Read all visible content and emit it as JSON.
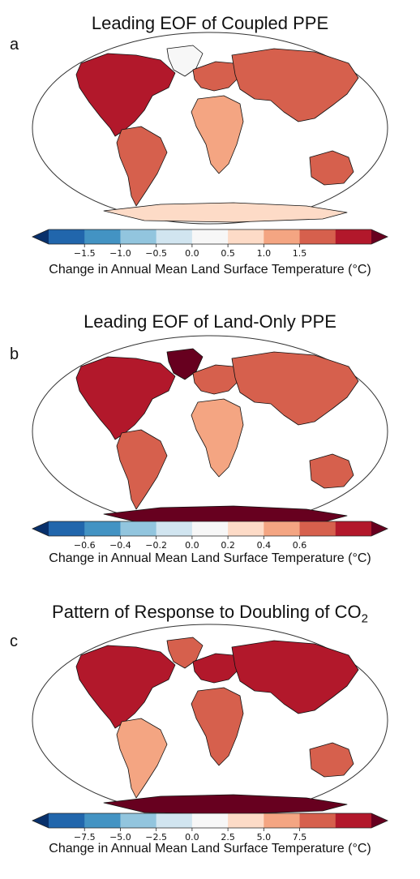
{
  "chart_data": [
    {
      "type": "heatmap",
      "panel_letter": "a",
      "title": "Leading EOF of Coupled PPE",
      "colorbar": {
        "ticks": [
          "−1.5",
          "−1.0",
          "−0.5",
          "0.0",
          "0.5",
          "1.0",
          "1.5"
        ],
        "range": [
          -1.75,
          1.75
        ],
        "label": "Change in Annual Mean Land Surface Temperature (°C)"
      },
      "region_values": {
        "north_america": 1.3,
        "greenland": 0.0,
        "south_america": 0.9,
        "europe": 1.1,
        "asia": 1.0,
        "africa": 0.7,
        "australia": 1.0,
        "antarctica": 0.3
      }
    },
    {
      "type": "heatmap",
      "panel_letter": "b",
      "title": "Leading EOF of Land-Only PPE",
      "colorbar": {
        "ticks": [
          "−0.6",
          "−0.4",
          "−0.2",
          "0.0",
          "0.2",
          "0.4",
          "0.6"
        ],
        "range": [
          -0.7,
          0.7
        ],
        "label": "Change in Annual Mean Land Surface Temperature (°C)"
      },
      "region_values": {
        "north_america": 0.45,
        "greenland": 0.65,
        "south_america": 0.35,
        "europe": 0.4,
        "asia": 0.4,
        "africa": 0.3,
        "australia": 0.4,
        "antarctica": 0.6
      }
    },
    {
      "type": "heatmap",
      "panel_letter": "c",
      "title": "Pattern of Response to Doubling of CO",
      "title_subscript": "2",
      "colorbar": {
        "ticks": [
          "−7.5",
          "−5.0",
          "−2.5",
          "0.0",
          "2.5",
          "5.0",
          "7.5"
        ],
        "range": [
          -8.75,
          8.75
        ],
        "label": "Change in Annual Mean Land Surface Temperature (°C)"
      },
      "region_values": {
        "north_america": 6.0,
        "greenland": 5.5,
        "south_america": 3.5,
        "europe": 6.0,
        "asia": 6.5,
        "africa": 5.0,
        "australia": 4.5,
        "antarctica": 8.0
      }
    }
  ],
  "colors": {
    "colormap": [
      "#08306b",
      "#2166ac",
      "#4393c3",
      "#92c5de",
      "#d1e5f0",
      "#f7f7f7",
      "#fddbc7",
      "#f4a582",
      "#d6604d",
      "#b2182b",
      "#67001f"
    ],
    "coastline": "#111111",
    "map_outline": "#333333"
  }
}
